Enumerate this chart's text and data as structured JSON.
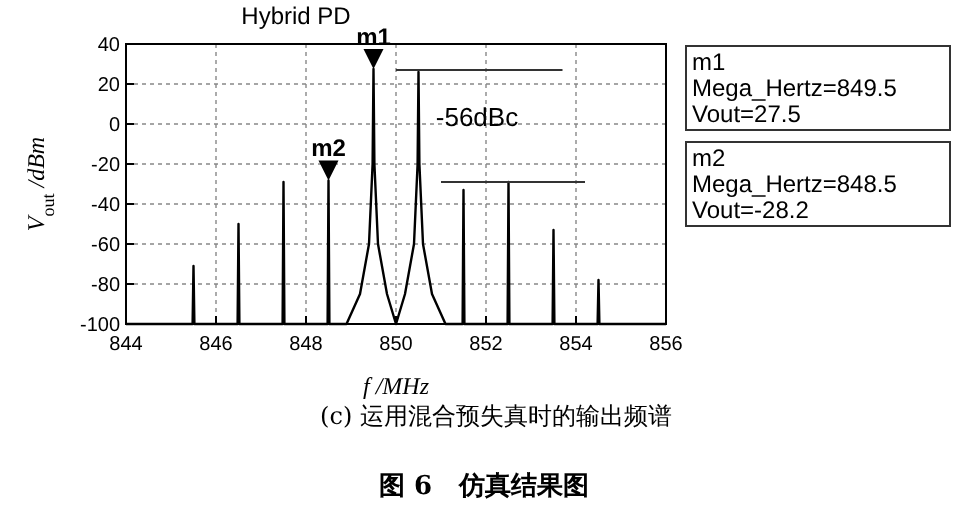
{
  "chart_data": {
    "type": "line",
    "title": "Hybrid PD",
    "xlabel": "f /MHz",
    "ylabel": "V$_{out}$ /dBm",
    "xlim": [
      844,
      856
    ],
    "xticks": [
      844,
      846,
      848,
      850,
      852,
      854,
      856
    ],
    "ylim": [
      -100,
      40
    ],
    "yticks": [
      -100,
      -80,
      -60,
      -40,
      -20,
      0,
      20,
      40
    ],
    "grid": true,
    "marker": "none",
    "line_style": "solid",
    "x": [
      844,
      845.48,
      845.5,
      845.52,
      846.48,
      846.5,
      846.52,
      847.48,
      847.5,
      847.52,
      848.48,
      848.5,
      848.52,
      848.9,
      849.2,
      849.4,
      849.48,
      849.5,
      849.52,
      849.6,
      849.8,
      850.0,
      850.2,
      850.4,
      850.48,
      850.5,
      850.52,
      850.6,
      850.8,
      851.1,
      851.48,
      851.5,
      851.52,
      852.48,
      852.5,
      852.52,
      853.48,
      853.5,
      853.52,
      854.48,
      854.5,
      854.52,
      856
    ],
    "series": [
      {
        "color": "#000000",
        "values": [
          -100,
          -100,
          -71,
          -100,
          -100,
          -50,
          -100,
          -100,
          -29,
          -100,
          -100,
          -28.2,
          -100,
          -100,
          -85,
          -60,
          -20,
          27.5,
          -20,
          -60,
          -85,
          -100,
          -85,
          -60,
          -20,
          26,
          -20,
          -60,
          -85,
          -100,
          -100,
          -33,
          -100,
          -100,
          -29,
          -100,
          -100,
          -53,
          -100,
          -100,
          -78,
          -100,
          -100
        ]
      }
    ],
    "annotations": [
      {
        "text": "m1",
        "x": 849.5,
        "y": 27.5
      },
      {
        "text": "m2",
        "x": 848.5,
        "y": -28.2
      },
      "-56dBc",
      "m1\nMega_Hertz=849.5\nVout=27.5",
      "m2\nMega_Hertz=848.5\nVout=-28.2",
      "(c) 运用混合预失真时的输出频谱",
      "图 6   仿真结果图"
    ]
  }
}
